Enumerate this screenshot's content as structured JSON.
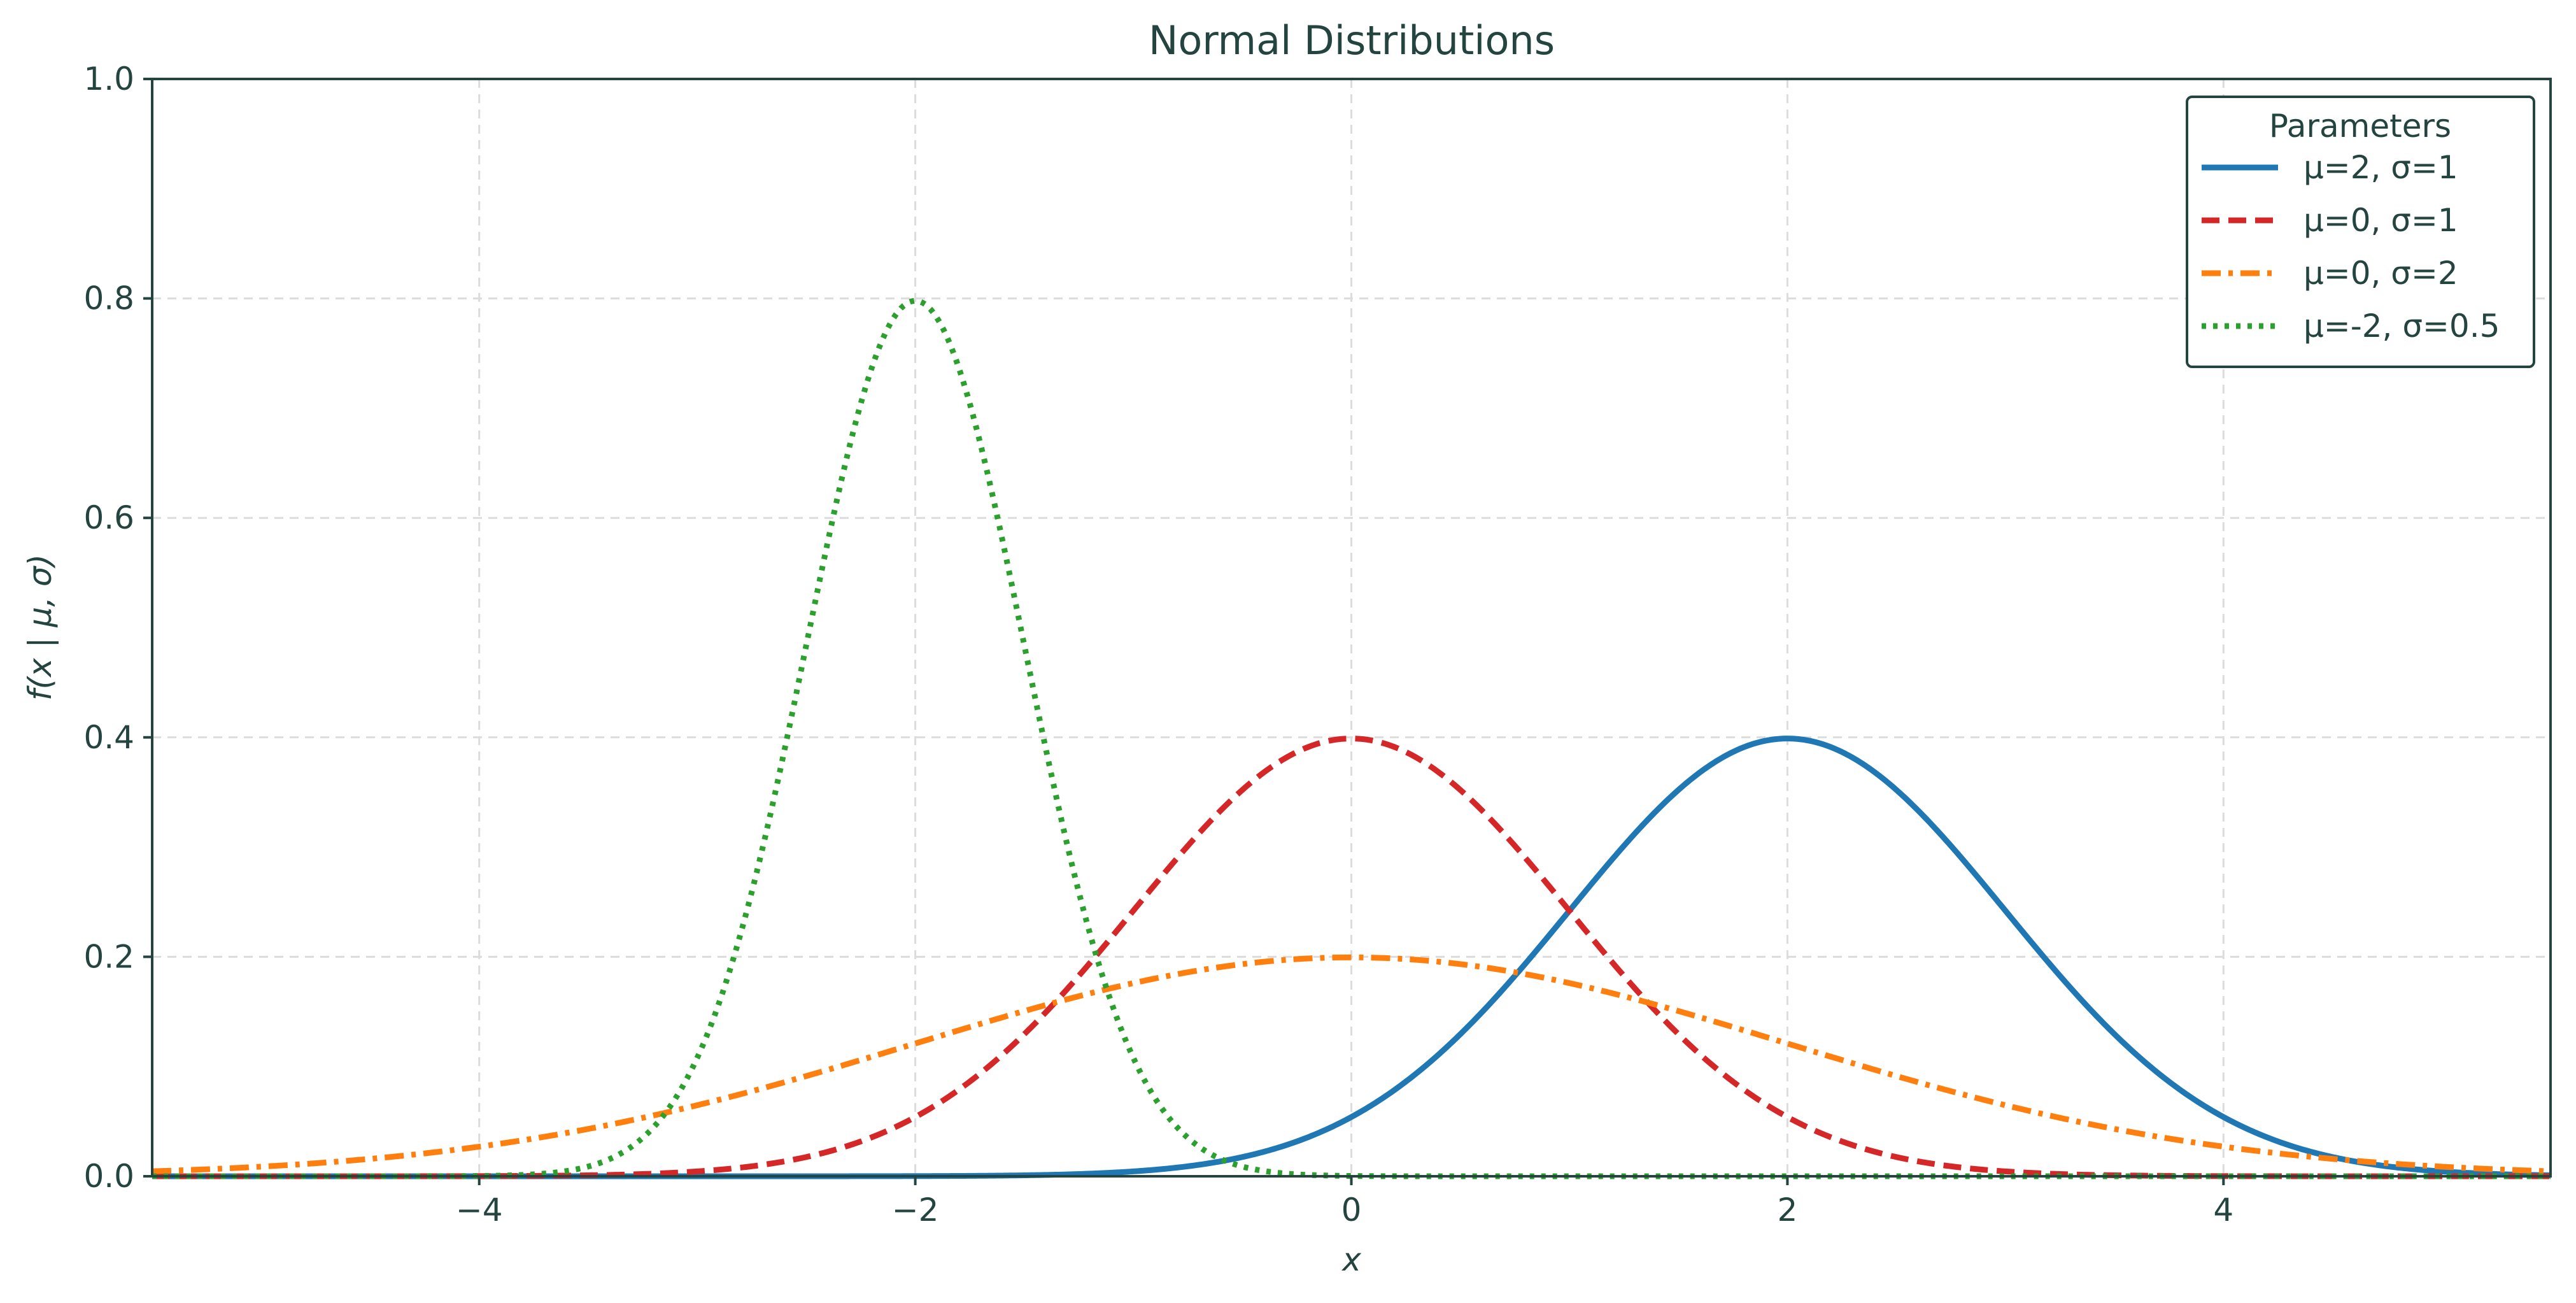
{
  "chart_data": {
    "type": "line",
    "title": "Normal Distributions",
    "xlabel": "x",
    "ylabel": "f(x | μ, σ)",
    "xlim": [
      -5.5,
      5.5
    ],
    "ylim": [
      0,
      1.0
    ],
    "x_ticks": [
      -4,
      -2,
      0,
      2,
      4
    ],
    "x_tick_labels": [
      "−4",
      "−2",
      "0",
      "2",
      "4"
    ],
    "y_ticks": [
      0,
      0.2,
      0.4,
      0.6,
      0.8,
      1.0
    ],
    "y_tick_labels": [
      "0.0",
      "0.2",
      "0.4",
      "0.6",
      "0.8",
      "1.0"
    ],
    "grid": true,
    "legend": {
      "title": "Parameters",
      "placement": "top-right"
    },
    "series": [
      {
        "name": "μ=2, σ=1",
        "mu": 2,
        "sigma": 1,
        "color": "#1f77b4",
        "style": "solid"
      },
      {
        "name": "μ=0, σ=1",
        "mu": 0,
        "sigma": 1,
        "color": "#d62728",
        "style": "dashed"
      },
      {
        "name": "μ=0, σ=2",
        "mu": 0,
        "sigma": 2,
        "color": "#ff7f0e",
        "style": "dashdot"
      },
      {
        "name": "μ=-2, σ=0.5",
        "mu": -2,
        "sigma": 0.5,
        "color": "#2ca02c",
        "style": "dotted"
      }
    ]
  }
}
